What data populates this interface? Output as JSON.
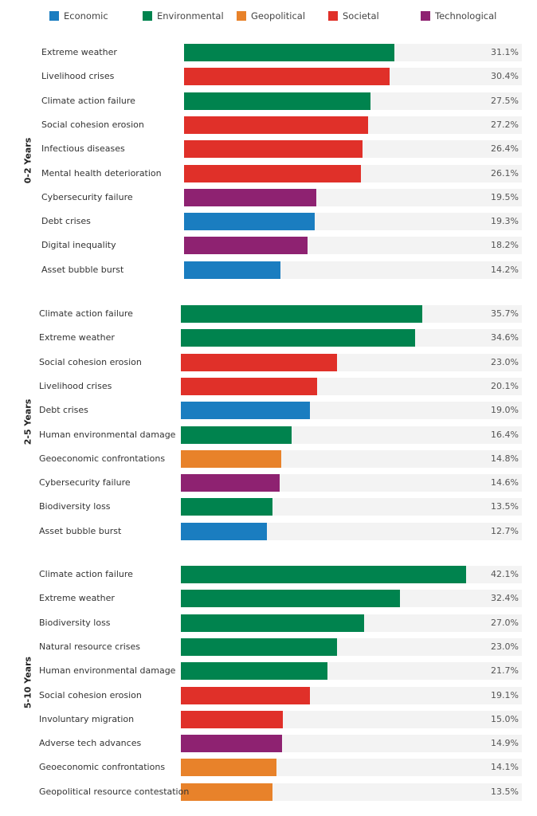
{
  "chart_data": {
    "type": "bar",
    "orientation": "horizontal",
    "legend": {
      "placement": "top",
      "entries": [
        {
          "name": "Economic",
          "color": "#1a7dc0"
        },
        {
          "name": "Environmental",
          "color": "#00834e"
        },
        {
          "name": "Geopolitical",
          "color": "#e8822a"
        },
        {
          "name": "Societal",
          "color": "#e03029"
        },
        {
          "name": "Technological",
          "color": "#8e2271"
        }
      ]
    },
    "value_suffix": "%",
    "xlim": [
      0,
      50
    ],
    "groups": [
      {
        "name": "0-2 Years",
        "items": [
          {
            "label": "Extreme weather",
            "value": 31.1,
            "category": "Environmental"
          },
          {
            "label": "Livelihood crises",
            "value": 30.4,
            "category": "Societal"
          },
          {
            "label": "Climate action failure",
            "value": 27.5,
            "category": "Environmental"
          },
          {
            "label": "Social cohesion erosion",
            "value": 27.2,
            "category": "Societal"
          },
          {
            "label": "Infectious diseases",
            "value": 26.4,
            "category": "Societal"
          },
          {
            "label": "Mental health deterioration",
            "value": 26.1,
            "category": "Societal"
          },
          {
            "label": "Cybersecurity failure",
            "value": 19.5,
            "category": "Technological"
          },
          {
            "label": "Debt crises",
            "value": 19.3,
            "category": "Economic"
          },
          {
            "label": "Digital inequality",
            "value": 18.2,
            "category": "Technological"
          },
          {
            "label": "Asset bubble burst",
            "value": 14.2,
            "category": "Economic"
          }
        ]
      },
      {
        "name": "2-5 Years",
        "items": [
          {
            "label": "Climate action failure",
            "value": 35.7,
            "category": "Environmental"
          },
          {
            "label": "Extreme weather",
            "value": 34.6,
            "category": "Environmental"
          },
          {
            "label": "Social cohesion erosion",
            "value": 23.0,
            "category": "Societal"
          },
          {
            "label": "Livelihood crises",
            "value": 20.1,
            "category": "Societal"
          },
          {
            "label": "Debt crises",
            "value": 19.0,
            "category": "Economic"
          },
          {
            "label": "Human environmental damage",
            "value": 16.4,
            "category": "Environmental"
          },
          {
            "label": "Geoeconomic confrontations",
            "value": 14.8,
            "category": "Geopolitical"
          },
          {
            "label": "Cybersecurity failure",
            "value": 14.6,
            "category": "Technological"
          },
          {
            "label": "Biodiversity loss",
            "value": 13.5,
            "category": "Environmental"
          },
          {
            "label": "Asset bubble burst",
            "value": 12.7,
            "category": "Economic"
          }
        ]
      },
      {
        "name": "5-10 Years",
        "items": [
          {
            "label": "Climate action failure",
            "value": 42.1,
            "category": "Environmental"
          },
          {
            "label": "Extreme weather",
            "value": 32.4,
            "category": "Environmental"
          },
          {
            "label": "Biodiversity loss",
            "value": 27.0,
            "category": "Environmental"
          },
          {
            "label": "Natural resource crises",
            "value": 23.0,
            "category": "Environmental"
          },
          {
            "label": "Human environmental damage",
            "value": 21.7,
            "category": "Environmental"
          },
          {
            "label": "Social cohesion erosion",
            "value": 19.1,
            "category": "Societal"
          },
          {
            "label": "Involuntary migration",
            "value": 15.0,
            "category": "Societal"
          },
          {
            "label": "Adverse tech advances",
            "value": 14.9,
            "category": "Technological"
          },
          {
            "label": "Geoeconomic confrontations",
            "value": 14.1,
            "category": "Geopolitical"
          },
          {
            "label": "Geopolitical resource contestation",
            "value": 13.5,
            "category": "Geopolitical"
          }
        ]
      }
    ]
  }
}
